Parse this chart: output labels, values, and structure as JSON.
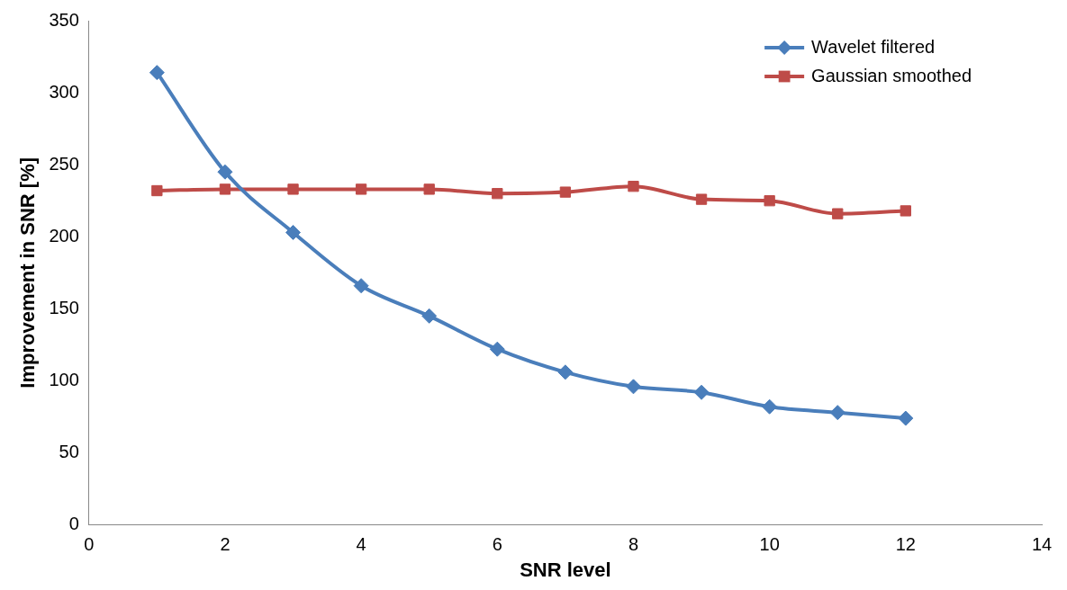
{
  "chart_data": {
    "type": "line",
    "xlabel": "SNR level",
    "ylabel": "Improvement in SNR [%]",
    "xlim": [
      0,
      14
    ],
    "xticks": [
      0,
      2,
      4,
      6,
      8,
      10,
      12,
      14
    ],
    "ylim": [
      0,
      350
    ],
    "yticks": [
      0,
      50,
      100,
      150,
      200,
      250,
      300,
      350
    ],
    "x": [
      1,
      2,
      3,
      4,
      5,
      6,
      7,
      8,
      9,
      10,
      11,
      12
    ],
    "grid": false,
    "legend": "top right",
    "line_style": "solid",
    "series": [
      {
        "name": "Wavelet filtered",
        "color": "#4a7ebb",
        "marker": "diamond",
        "values": [
          314,
          245,
          203,
          166,
          145,
          122,
          106,
          96,
          92,
          82,
          78,
          74
        ]
      },
      {
        "name": "Gaussian smoothed",
        "color": "#be4b48",
        "marker": "square",
        "values": [
          232,
          233,
          233,
          233,
          233,
          230,
          231,
          235,
          226,
          225,
          216,
          218
        ]
      }
    ]
  }
}
